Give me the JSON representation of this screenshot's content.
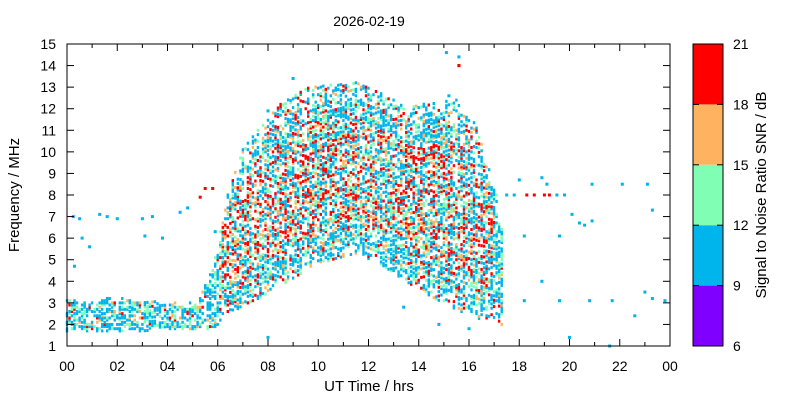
{
  "chart_data": {
    "type": "scatter",
    "title": "2026-02-19",
    "xlabel": "UT Time / hrs",
    "ylabel": "Frequency / MHz",
    "xlim": [
      0,
      24
    ],
    "ylim": [
      1,
      15
    ],
    "x_ticks": [
      "00",
      "02",
      "04",
      "06",
      "08",
      "10",
      "12",
      "14",
      "16",
      "18",
      "20",
      "22",
      "00"
    ],
    "y_ticks": [
      "1",
      "2",
      "3",
      "4",
      "5",
      "6",
      "7",
      "8",
      "9",
      "10",
      "11",
      "12",
      "13",
      "14",
      "15"
    ],
    "colorbar": {
      "label": "Signal to Noise Ratio SNR / dB",
      "ticks": [
        "6",
        "9",
        "12",
        "15",
        "18",
        "21"
      ],
      "bins": [
        {
          "min": 6,
          "max": 9,
          "color": "#7f00ff"
        },
        {
          "min": 9,
          "max": 12,
          "color": "#00b4ec"
        },
        {
          "min": 12,
          "max": 15,
          "color": "#80ffb4"
        },
        {
          "min": 15,
          "max": 18,
          "color": "#ffb360"
        },
        {
          "min": 18,
          "max": 21,
          "color": "#ff0000"
        }
      ]
    },
    "envelope": [
      {
        "x": 0.0,
        "lo": 1.7,
        "hi": 3.1
      },
      {
        "x": 1.0,
        "lo": 1.7,
        "hi": 3.1
      },
      {
        "x": 2.0,
        "lo": 1.7,
        "hi": 3.3
      },
      {
        "x": 3.0,
        "lo": 1.7,
        "hi": 3.1
      },
      {
        "x": 4.0,
        "lo": 1.8,
        "hi": 3.0
      },
      {
        "x": 5.2,
        "lo": 1.8,
        "hi": 3.0
      },
      {
        "x": 5.8,
        "lo": 1.8,
        "hi": 4.6
      },
      {
        "x": 6.4,
        "lo": 2.4,
        "hi": 8.0
      },
      {
        "x": 7.0,
        "lo": 2.9,
        "hi": 10.2
      },
      {
        "x": 7.6,
        "lo": 3.2,
        "hi": 11.0
      },
      {
        "x": 8.5,
        "lo": 3.8,
        "hi": 12.2
      },
      {
        "x": 9.5,
        "lo": 4.5,
        "hi": 13.0
      },
      {
        "x": 10.5,
        "lo": 5.0,
        "hi": 13.1
      },
      {
        "x": 11.5,
        "lo": 5.3,
        "hi": 13.2
      },
      {
        "x": 12.5,
        "lo": 4.8,
        "hi": 12.8
      },
      {
        "x": 13.5,
        "lo": 4.0,
        "hi": 12.0
      },
      {
        "x": 14.5,
        "lo": 3.3,
        "hi": 12.3
      },
      {
        "x": 15.5,
        "lo": 2.7,
        "hi": 12.4
      },
      {
        "x": 16.3,
        "lo": 2.3,
        "hi": 11.2
      },
      {
        "x": 17.1,
        "lo": 2.1,
        "hi": 8.0
      },
      {
        "x": 17.3,
        "lo": 2.0,
        "hi": 6.6
      }
    ],
    "scattered_points": [
      {
        "x": 0.25,
        "y": 7.0,
        "snr": 10
      },
      {
        "x": 0.5,
        "y": 6.9,
        "snr": 10
      },
      {
        "x": 0.6,
        "y": 6.0,
        "snr": 10
      },
      {
        "x": 0.9,
        "y": 5.6,
        "snr": 10
      },
      {
        "x": 0.3,
        "y": 4.7,
        "snr": 10
      },
      {
        "x": 1.3,
        "y": 7.1,
        "snr": 10
      },
      {
        "x": 1.6,
        "y": 7.0,
        "snr": 10
      },
      {
        "x": 2.0,
        "y": 6.9,
        "snr": 10
      },
      {
        "x": 3.0,
        "y": 6.9,
        "snr": 10
      },
      {
        "x": 3.4,
        "y": 7.0,
        "snr": 10
      },
      {
        "x": 3.1,
        "y": 6.1,
        "snr": 10
      },
      {
        "x": 3.8,
        "y": 6.0,
        "snr": 10
      },
      {
        "x": 4.5,
        "y": 7.2,
        "snr": 10
      },
      {
        "x": 4.8,
        "y": 7.4,
        "snr": 10
      },
      {
        "x": 5.3,
        "y": 7.9,
        "snr": 20
      },
      {
        "x": 5.5,
        "y": 8.3,
        "snr": 20
      },
      {
        "x": 5.8,
        "y": 8.3,
        "snr": 20
      },
      {
        "x": 5.9,
        "y": 6.3,
        "snr": 10
      },
      {
        "x": 8.0,
        "y": 1.4,
        "snr": 10
      },
      {
        "x": 8.0,
        "y": 11.9,
        "snr": 10
      },
      {
        "x": 9.0,
        "y": 13.4,
        "snr": 10
      },
      {
        "x": 15.1,
        "y": 14.6,
        "snr": 10
      },
      {
        "x": 15.6,
        "y": 14.4,
        "snr": 10
      },
      {
        "x": 15.6,
        "y": 14.0,
        "snr": 20
      },
      {
        "x": 15.6,
        "y": 14.0,
        "snr": 20
      },
      {
        "x": 15.2,
        "y": 12.6,
        "snr": 10
      },
      {
        "x": 13.4,
        "y": 2.8,
        "snr": 10
      },
      {
        "x": 17.5,
        "y": 8.0,
        "snr": 10
      },
      {
        "x": 17.8,
        "y": 8.0,
        "snr": 10
      },
      {
        "x": 18.0,
        "y": 8.7,
        "snr": 10
      },
      {
        "x": 18.3,
        "y": 8.0,
        "snr": 20
      },
      {
        "x": 18.6,
        "y": 8.0,
        "snr": 20
      },
      {
        "x": 18.9,
        "y": 8.8,
        "snr": 10
      },
      {
        "x": 19.0,
        "y": 8.0,
        "snr": 20
      },
      {
        "x": 19.2,
        "y": 8.0,
        "snr": 20
      },
      {
        "x": 19.1,
        "y": 8.5,
        "snr": 10
      },
      {
        "x": 19.5,
        "y": 8.0,
        "snr": 10
      },
      {
        "x": 19.8,
        "y": 8.0,
        "snr": 10
      },
      {
        "x": 20.1,
        "y": 7.1,
        "snr": 10
      },
      {
        "x": 20.4,
        "y": 6.7,
        "snr": 10
      },
      {
        "x": 20.6,
        "y": 6.6,
        "snr": 10
      },
      {
        "x": 20.9,
        "y": 6.8,
        "snr": 10
      },
      {
        "x": 20.9,
        "y": 8.5,
        "snr": 10
      },
      {
        "x": 22.1,
        "y": 8.5,
        "snr": 10
      },
      {
        "x": 23.1,
        "y": 8.5,
        "snr": 10
      },
      {
        "x": 23.3,
        "y": 7.3,
        "snr": 10
      },
      {
        "x": 19.6,
        "y": 6.1,
        "snr": 10
      },
      {
        "x": 18.2,
        "y": 6.1,
        "snr": 10
      },
      {
        "x": 17.2,
        "y": 6.3,
        "snr": 10
      },
      {
        "x": 18.9,
        "y": 4.0,
        "snr": 10
      },
      {
        "x": 18.2,
        "y": 3.1,
        "snr": 10
      },
      {
        "x": 19.6,
        "y": 3.1,
        "snr": 10
      },
      {
        "x": 20.8,
        "y": 3.1,
        "snr": 10
      },
      {
        "x": 21.7,
        "y": 3.1,
        "snr": 10
      },
      {
        "x": 23.0,
        "y": 3.5,
        "snr": 10
      },
      {
        "x": 23.3,
        "y": 3.2,
        "snr": 10
      },
      {
        "x": 23.8,
        "y": 3.1,
        "snr": 10
      },
      {
        "x": 22.6,
        "y": 2.4,
        "snr": 10
      },
      {
        "x": 20.0,
        "y": 1.4,
        "snr": 10
      },
      {
        "x": 21.6,
        "y": 1.0,
        "snr": 10
      },
      {
        "x": 14.8,
        "y": 2.0,
        "snr": 10
      },
      {
        "x": 16.0,
        "y": 1.8,
        "snr": 10
      }
    ]
  }
}
